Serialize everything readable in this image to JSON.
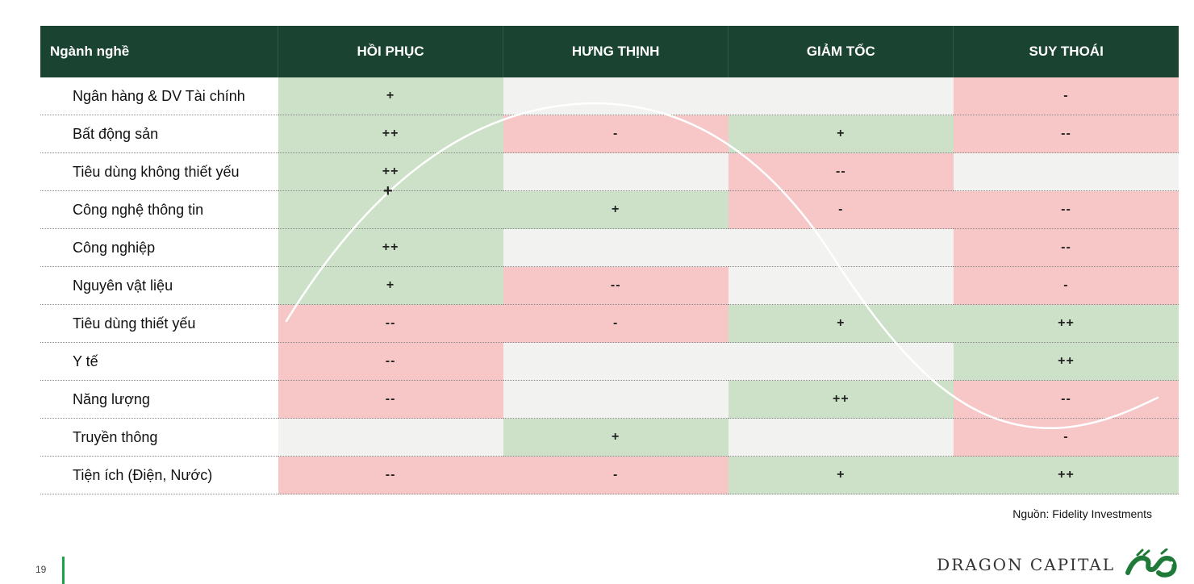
{
  "table": {
    "header": {
      "sector": "Ngành nghề",
      "phases": [
        "HỒI PHỤC",
        "HƯNG THỊNH",
        "GIẢM TỐC",
        "SUY THOÁI"
      ]
    },
    "rows": [
      {
        "name": "Ngân hàng & DV Tài chính",
        "cells": [
          {
            "v": "+",
            "c": "pos"
          },
          {
            "v": "",
            "c": "neu"
          },
          {
            "v": "",
            "c": "neu"
          },
          {
            "v": "-",
            "c": "neg"
          }
        ]
      },
      {
        "name": "Bất động sản",
        "cells": [
          {
            "v": "++",
            "c": "pos"
          },
          {
            "v": "-",
            "c": "neg"
          },
          {
            "v": "+",
            "c": "pos"
          },
          {
            "v": "--",
            "c": "neg"
          }
        ]
      },
      {
        "name": "Tiêu dùng không thiết yếu",
        "cells": [
          {
            "v": "++",
            "c": "pos"
          },
          {
            "v": "",
            "c": "neu"
          },
          {
            "v": "--",
            "c": "neg"
          },
          {
            "v": "",
            "c": "neu"
          }
        ]
      },
      {
        "name": "Công nghệ thông tin",
        "cells": [
          {
            "v": "",
            "c": "pos"
          },
          {
            "v": "+",
            "c": "pos"
          },
          {
            "v": "-",
            "c": "neg"
          },
          {
            "v": "--",
            "c": "neg"
          }
        ]
      },
      {
        "name": "Công nghiệp",
        "cells": [
          {
            "v": "++",
            "c": "pos"
          },
          {
            "v": "",
            "c": "neu"
          },
          {
            "v": "",
            "c": "neu"
          },
          {
            "v": "--",
            "c": "neg"
          }
        ]
      },
      {
        "name": "Nguyên vật liệu",
        "cells": [
          {
            "v": "+",
            "c": "pos"
          },
          {
            "v": "--",
            "c": "neg"
          },
          {
            "v": "",
            "c": "neu"
          },
          {
            "v": "-",
            "c": "neg"
          }
        ]
      },
      {
        "name": "Tiêu dùng thiết yếu",
        "cells": [
          {
            "v": "--",
            "c": "neg"
          },
          {
            "v": "-",
            "c": "neg"
          },
          {
            "v": "+",
            "c": "pos"
          },
          {
            "v": "++",
            "c": "pos"
          }
        ]
      },
      {
        "name": "Y tế",
        "cells": [
          {
            "v": "--",
            "c": "neg"
          },
          {
            "v": "",
            "c": "neu"
          },
          {
            "v": "",
            "c": "neu"
          },
          {
            "v": "++",
            "c": "pos"
          }
        ]
      },
      {
        "name": "Năng lượng",
        "cells": [
          {
            "v": "--",
            "c": "neg"
          },
          {
            "v": "",
            "c": "neu"
          },
          {
            "v": "++",
            "c": "pos"
          },
          {
            "v": "--",
            "c": "neg"
          }
        ]
      },
      {
        "name": "Truyền thông",
        "cells": [
          {
            "v": "",
            "c": "neu"
          },
          {
            "v": "+",
            "c": "pos"
          },
          {
            "v": "",
            "c": "neu"
          },
          {
            "v": "-",
            "c": "neg"
          }
        ]
      },
      {
        "name": "Tiện ích (Điện, Nước)",
        "cells": [
          {
            "v": "--",
            "c": "neg"
          },
          {
            "v": "-",
            "c": "neg"
          },
          {
            "v": "+",
            "c": "pos"
          },
          {
            "v": "++",
            "c": "pos"
          }
        ]
      }
    ],
    "stray_mark": "+"
  },
  "source": "Nguồn: Fidelity Investments",
  "page_number": "19",
  "brand": {
    "name": "DRAGON CAPITAL",
    "logo_icon": "dragon-logo-icon"
  },
  "colors": {
    "header": "#1b4331",
    "positive": "#cce1c8",
    "negative": "#f7c7c8",
    "neutral": "#f2f2f1",
    "accent": "#1aa34a"
  }
}
